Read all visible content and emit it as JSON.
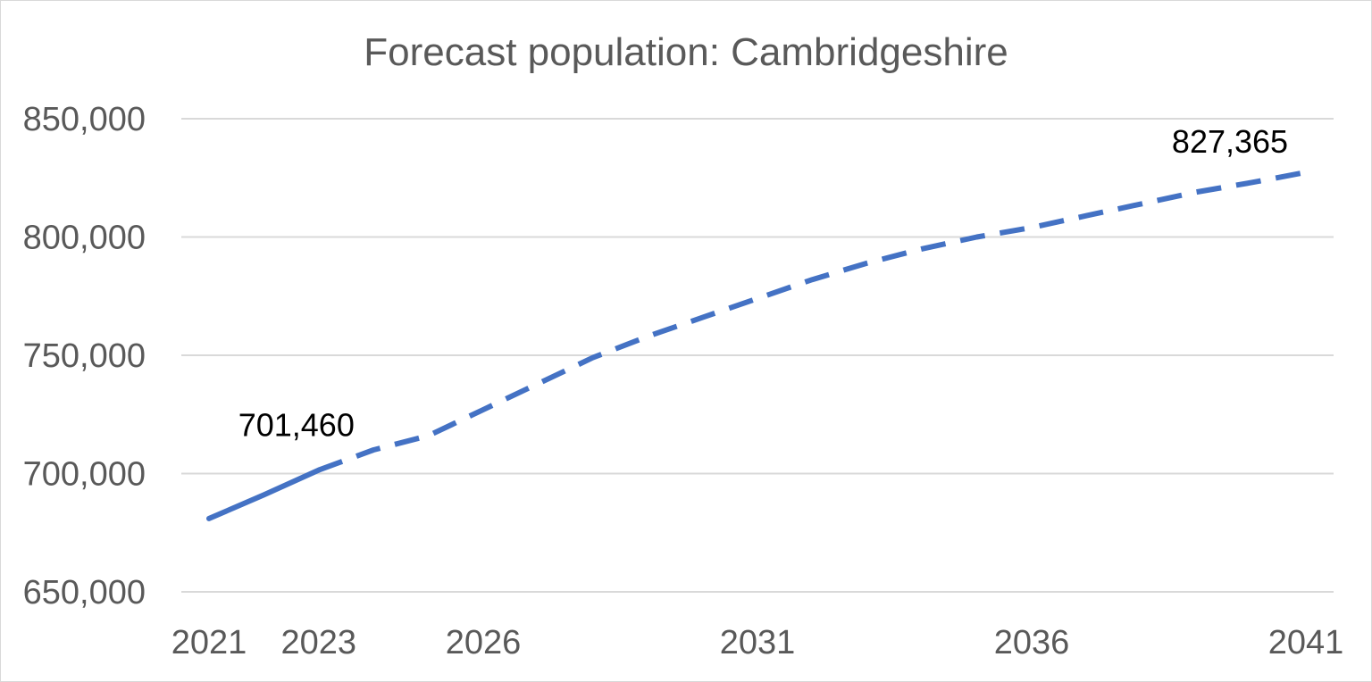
{
  "chart_data": {
    "type": "line",
    "title": "Forecast population: Cambridgeshire",
    "xlabel": "",
    "ylabel": "",
    "x": [
      2021,
      2022,
      2023,
      2024,
      2025,
      2026,
      2027,
      2028,
      2029,
      2030,
      2031,
      2032,
      2033,
      2034,
      2035,
      2036,
      2037,
      2038,
      2039,
      2040,
      2041
    ],
    "x_tick_labels": [
      "2021",
      "2023",
      "2026",
      "2031",
      "2036",
      "2041"
    ],
    "ylim": [
      650000,
      850000
    ],
    "y_tick_labels": [
      "650,000",
      "700,000",
      "750,000",
      "800,000",
      "850,000"
    ],
    "grid": true,
    "series": [
      {
        "line_style": "solid",
        "color": "#4472C4",
        "x": [
          2021,
          2022,
          2023
        ],
        "values": [
          681000,
          691000,
          701460
        ]
      },
      {
        "line_style": "dashed",
        "color": "#4472C4",
        "x": [
          2023,
          2024,
          2025,
          2026,
          2027,
          2028,
          2029,
          2030,
          2031,
          2032,
          2033,
          2034,
          2035,
          2036,
          2037,
          2038,
          2039,
          2040,
          2041
        ],
        "values": [
          701460,
          710000,
          716000,
          727000,
          738000,
          749000,
          758000,
          766000,
          774000,
          782000,
          789000,
          795000,
          800000,
          804000,
          809000,
          814000,
          819000,
          823000,
          827365
        ]
      }
    ],
    "data_labels": [
      {
        "x": 2023,
        "y": 701460,
        "text": "701,460"
      },
      {
        "x": 2041,
        "y": 827365,
        "text": "827,365"
      }
    ]
  }
}
